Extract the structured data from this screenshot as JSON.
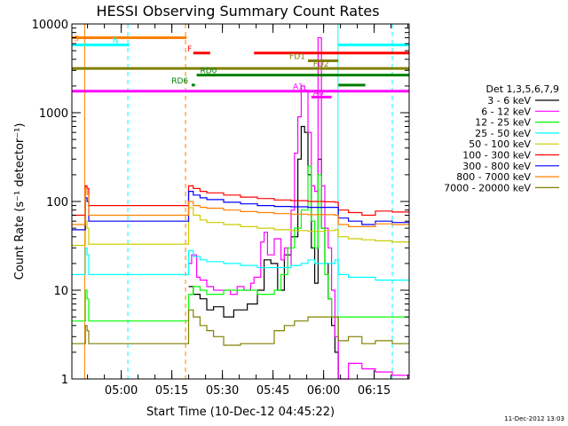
{
  "chart_data": {
    "type": "line",
    "title": "HESSI Observing Summary Count Rates",
    "xlabel": "Start Time (10-Dec-12 04:45:22)",
    "ylabel": "Count Rate (s⁻¹ detector⁻¹)",
    "y_scale": "log",
    "ylim": [
      1,
      10000
    ],
    "x_range_minutes": [
      "04:45:22",
      "06:25:22"
    ],
    "x_ticks": [
      "05:00",
      "05:15",
      "05:30",
      "05:45",
      "06:00",
      "06:15"
    ],
    "y_ticks": [
      "1",
      "10",
      "100",
      "1000",
      "10000"
    ],
    "timestamp": "11-Dec-2012 13:03",
    "legend": {
      "placement": "right",
      "title": "Det 1,3,5,6,7,9",
      "entries": [
        {
          "label": "3 - 6 keV",
          "color": "#000000"
        },
        {
          "label": "6 - 12 keV",
          "color": "#ff00ff"
        },
        {
          "label": "12 - 25 keV",
          "color": "#00ff00"
        },
        {
          "label": "25 - 50 keV",
          "color": "#00ffff"
        },
        {
          "label": "50 - 100 keV",
          "color": "#cccc00"
        },
        {
          "label": "100 - 300 keV",
          "color": "#ff0000"
        },
        {
          "label": "300 - 800 keV",
          "color": "#0000ff"
        },
        {
          "label": "800 - 7000 keV",
          "color": "#ff8000"
        },
        {
          "label": "7000 - 20000 keV",
          "color": "#808000"
        }
      ]
    },
    "flag_bars": [
      {
        "label": "S",
        "color": "#ff8000",
        "y": 7000,
        "segments": [
          [
            0,
            34
          ]
        ],
        "label_x": 0
      },
      {
        "label": "N",
        "color": "#00ffff",
        "y": 5800,
        "segments": [
          [
            0,
            17
          ],
          [
            79,
            100
          ]
        ],
        "label_x": 11.5
      },
      {
        "label": "F",
        "color": "#ff0000",
        "y": 4700,
        "segments": [
          [
            36,
            41
          ],
          [
            54,
            100
          ]
        ],
        "label_x": 33.7
      },
      {
        "label": "FD1",
        "color": "#808000",
        "y": 3850,
        "segments": [
          [
            70,
            79
          ]
        ],
        "label_x": 64
      },
      {
        "label": "FD2",
        "color": "#808000",
        "y": 3150,
        "segments": [
          [
            0,
            100
          ]
        ],
        "label_x": 71
      },
      {
        "label": "RD0",
        "color": "#008000",
        "y": 2650,
        "segments": [
          [
            37,
            100
          ]
        ],
        "label_x": 37.5
      },
      {
        "label": "RD6",
        "color": "#008000",
        "y": 2050,
        "segments": [
          [
            35.5,
            36.5
          ],
          [
            79,
            87
          ]
        ],
        "label_x": 29
      },
      {
        "label": "A1",
        "color": "#ff00ff",
        "y": 1750,
        "segments": [
          [
            0,
            100
          ]
        ],
        "label_x": 65
      },
      {
        "label": "A0",
        "color": "#ff00ff",
        "y": 1500,
        "segments": [
          [
            71,
            77
          ]
        ],
        "label_x": 71
      }
    ],
    "vlines": [
      {
        "x": 3.8,
        "color": "#ff8000",
        "style": "solid"
      },
      {
        "x": 16.6,
        "color": "#00ffff",
        "style": "dashed"
      },
      {
        "x": 33.7,
        "color": "#ff8000",
        "style": "dashed"
      },
      {
        "x": 78.9,
        "color": "#00ffff",
        "style": "solid"
      },
      {
        "x": 95,
        "color": "#00ffff",
        "style": "dashed"
      }
    ],
    "series": [
      {
        "name": "3 - 6 keV",
        "color": "#000000",
        "points": [
          [
            34.6,
            11
          ],
          [
            36,
            9
          ],
          [
            38,
            8
          ],
          [
            40,
            6
          ],
          [
            42,
            6.5
          ],
          [
            45,
            5
          ],
          [
            48,
            6
          ],
          [
            50,
            6
          ],
          [
            52,
            7
          ],
          [
            55,
            10
          ],
          [
            57,
            22
          ],
          [
            59,
            20
          ],
          [
            61,
            10
          ],
          [
            63,
            25
          ],
          [
            65,
            40
          ],
          [
            67,
            300
          ],
          [
            68,
            700
          ],
          [
            69,
            600
          ],
          [
            70,
            200
          ],
          [
            71,
            30
          ],
          [
            72,
            12
          ],
          [
            73,
            300
          ],
          [
            74,
            50
          ],
          [
            75,
            20
          ],
          [
            76,
            8
          ],
          [
            77,
            4
          ],
          [
            78,
            2
          ],
          [
            79,
            1
          ]
        ]
      },
      {
        "name": "6 - 12 keV",
        "color": "#ff00ff",
        "points": [
          [
            34.6,
            20
          ],
          [
            35.5,
            25
          ],
          [
            37,
            14
          ],
          [
            38,
            13
          ],
          [
            40,
            11
          ],
          [
            42,
            10
          ],
          [
            45,
            10
          ],
          [
            47,
            9
          ],
          [
            49,
            11
          ],
          [
            51,
            10
          ],
          [
            53,
            12
          ],
          [
            54,
            14
          ],
          [
            56,
            35
          ],
          [
            57,
            45
          ],
          [
            58,
            25
          ],
          [
            60,
            38
          ],
          [
            62,
            22
          ],
          [
            63,
            30
          ],
          [
            64,
            18
          ],
          [
            65,
            80
          ],
          [
            66,
            350
          ],
          [
            67,
            900
          ],
          [
            68,
            2000
          ],
          [
            69,
            1800
          ],
          [
            70,
            600
          ],
          [
            71,
            150
          ],
          [
            72,
            130
          ],
          [
            73,
            7000
          ],
          [
            74,
            150
          ],
          [
            75,
            50
          ],
          [
            76,
            30
          ],
          [
            77,
            10
          ],
          [
            78,
            3
          ],
          [
            79,
            1
          ],
          [
            82,
            1.5
          ],
          [
            86,
            1.3
          ],
          [
            90,
            1.2
          ],
          [
            95,
            1.1
          ],
          [
            100,
            1.1
          ]
        ]
      },
      {
        "name": "12 - 25 keV",
        "color": "#00ff00",
        "points": [
          [
            0,
            4.5
          ],
          [
            3.5,
            4.5
          ],
          [
            4,
            10
          ],
          [
            4.5,
            8
          ],
          [
            5,
            4.5
          ],
          [
            34.6,
            9
          ],
          [
            36,
            11
          ],
          [
            38,
            10
          ],
          [
            40,
            9
          ],
          [
            45,
            10
          ],
          [
            50,
            10
          ],
          [
            55,
            9
          ],
          [
            60,
            10
          ],
          [
            62,
            15
          ],
          [
            64,
            30
          ],
          [
            66,
            50
          ],
          [
            68,
            80
          ],
          [
            70,
            250
          ],
          [
            71,
            60
          ],
          [
            72,
            30
          ],
          [
            73,
            200
          ],
          [
            74,
            50
          ],
          [
            75,
            15
          ],
          [
            76,
            8
          ],
          [
            77,
            5
          ],
          [
            78,
            5
          ],
          [
            79,
            5
          ],
          [
            82,
            5
          ],
          [
            86,
            5
          ],
          [
            90,
            5
          ],
          [
            95,
            5
          ],
          [
            100,
            5
          ]
        ]
      },
      {
        "name": "25 - 50 keV",
        "color": "#00ffff",
        "points": [
          [
            0,
            15
          ],
          [
            3.5,
            15
          ],
          [
            4,
            30
          ],
          [
            4.5,
            25
          ],
          [
            5,
            15
          ],
          [
            34.6,
            28
          ],
          [
            36,
            24
          ],
          [
            38,
            22
          ],
          [
            40,
            21
          ],
          [
            45,
            20
          ],
          [
            50,
            19
          ],
          [
            55,
            18
          ],
          [
            60,
            18
          ],
          [
            65,
            19
          ],
          [
            68,
            20
          ],
          [
            70,
            22
          ],
          [
            72,
            20
          ],
          [
            74,
            20
          ],
          [
            76,
            20
          ],
          [
            78,
            22
          ],
          [
            79,
            15
          ],
          [
            82,
            14
          ],
          [
            86,
            14
          ],
          [
            90,
            13
          ],
          [
            95,
            13
          ],
          [
            100,
            13
          ]
        ]
      },
      {
        "name": "50 - 100 keV",
        "color": "#cccc00",
        "points": [
          [
            0,
            32
          ],
          [
            3.5,
            32
          ],
          [
            4,
            60
          ],
          [
            4.5,
            50
          ],
          [
            5,
            33
          ],
          [
            34.6,
            85
          ],
          [
            36,
            70
          ],
          [
            38,
            62
          ],
          [
            40,
            58
          ],
          [
            45,
            55
          ],
          [
            50,
            52
          ],
          [
            55,
            50
          ],
          [
            60,
            48
          ],
          [
            65,
            47
          ],
          [
            70,
            46
          ],
          [
            75,
            47
          ],
          [
            78,
            48
          ],
          [
            79,
            40
          ],
          [
            82,
            38
          ],
          [
            86,
            37
          ],
          [
            90,
            36
          ],
          [
            95,
            35
          ],
          [
            100,
            35
          ]
        ]
      },
      {
        "name": "100 - 300 keV",
        "color": "#ff0000",
        "points": [
          [
            0,
            70
          ],
          [
            3.5,
            70
          ],
          [
            4,
            150
          ],
          [
            4.5,
            140
          ],
          [
            5,
            90
          ],
          [
            34.6,
            150
          ],
          [
            36,
            140
          ],
          [
            38,
            130
          ],
          [
            40,
            125
          ],
          [
            45,
            118
          ],
          [
            50,
            112
          ],
          [
            55,
            108
          ],
          [
            60,
            104
          ],
          [
            65,
            102
          ],
          [
            70,
            100
          ],
          [
            75,
            99
          ],
          [
            78,
            98
          ],
          [
            79,
            80
          ],
          [
            82,
            75
          ],
          [
            86,
            70
          ],
          [
            90,
            78
          ],
          [
            95,
            76
          ],
          [
            100,
            75
          ]
        ]
      },
      {
        "name": "300 - 800 keV",
        "color": "#0000ff",
        "points": [
          [
            0,
            48
          ],
          [
            3.5,
            48
          ],
          [
            4,
            110
          ],
          [
            4.5,
            100
          ],
          [
            5,
            60
          ],
          [
            34.6,
            130
          ],
          [
            36,
            118
          ],
          [
            38,
            110
          ],
          [
            40,
            105
          ],
          [
            45,
            98
          ],
          [
            50,
            94
          ],
          [
            55,
            90
          ],
          [
            60,
            88
          ],
          [
            65,
            87
          ],
          [
            70,
            86
          ],
          [
            75,
            86
          ],
          [
            78,
            86
          ],
          [
            79,
            65
          ],
          [
            82,
            60
          ],
          [
            86,
            55
          ],
          [
            90,
            60
          ],
          [
            95,
            58
          ],
          [
            100,
            57
          ]
        ]
      },
      {
        "name": "800 - 7000 keV",
        "color": "#ff8000",
        "points": [
          [
            0,
            55
          ],
          [
            3.5,
            55
          ],
          [
            4,
            140
          ],
          [
            4.5,
            120
          ],
          [
            5,
            70
          ],
          [
            34.6,
            100
          ],
          [
            36,
            90
          ],
          [
            38,
            86
          ],
          [
            40,
            84
          ],
          [
            45,
            80
          ],
          [
            50,
            77
          ],
          [
            55,
            75
          ],
          [
            60,
            73
          ],
          [
            65,
            72
          ],
          [
            70,
            71
          ],
          [
            75,
            71
          ],
          [
            78,
            70
          ],
          [
            79,
            55
          ],
          [
            82,
            52
          ],
          [
            86,
            52
          ],
          [
            90,
            56
          ],
          [
            95,
            55
          ],
          [
            100,
            55
          ]
        ]
      },
      {
        "name": "7000 - 20000 keV",
        "color": "#808000",
        "points": [
          [
            0,
            2.5
          ],
          [
            3.5,
            2.5
          ],
          [
            4,
            4
          ],
          [
            4.5,
            3.5
          ],
          [
            5,
            2.5
          ],
          [
            34.6,
            6
          ],
          [
            36,
            5
          ],
          [
            38,
            4
          ],
          [
            40,
            3.5
          ],
          [
            42,
            3
          ],
          [
            45,
            2.4
          ],
          [
            50,
            2.5
          ],
          [
            55,
            2.5
          ],
          [
            58,
            2.5
          ],
          [
            60,
            3.5
          ],
          [
            63,
            4
          ],
          [
            66,
            4.5
          ],
          [
            70,
            5
          ],
          [
            75,
            5
          ],
          [
            78,
            5
          ],
          [
            79,
            2.7
          ],
          [
            82,
            3
          ],
          [
            86,
            2.5
          ],
          [
            90,
            2.7
          ],
          [
            95,
            2.5
          ],
          [
            100,
            2.5
          ]
        ]
      }
    ]
  }
}
